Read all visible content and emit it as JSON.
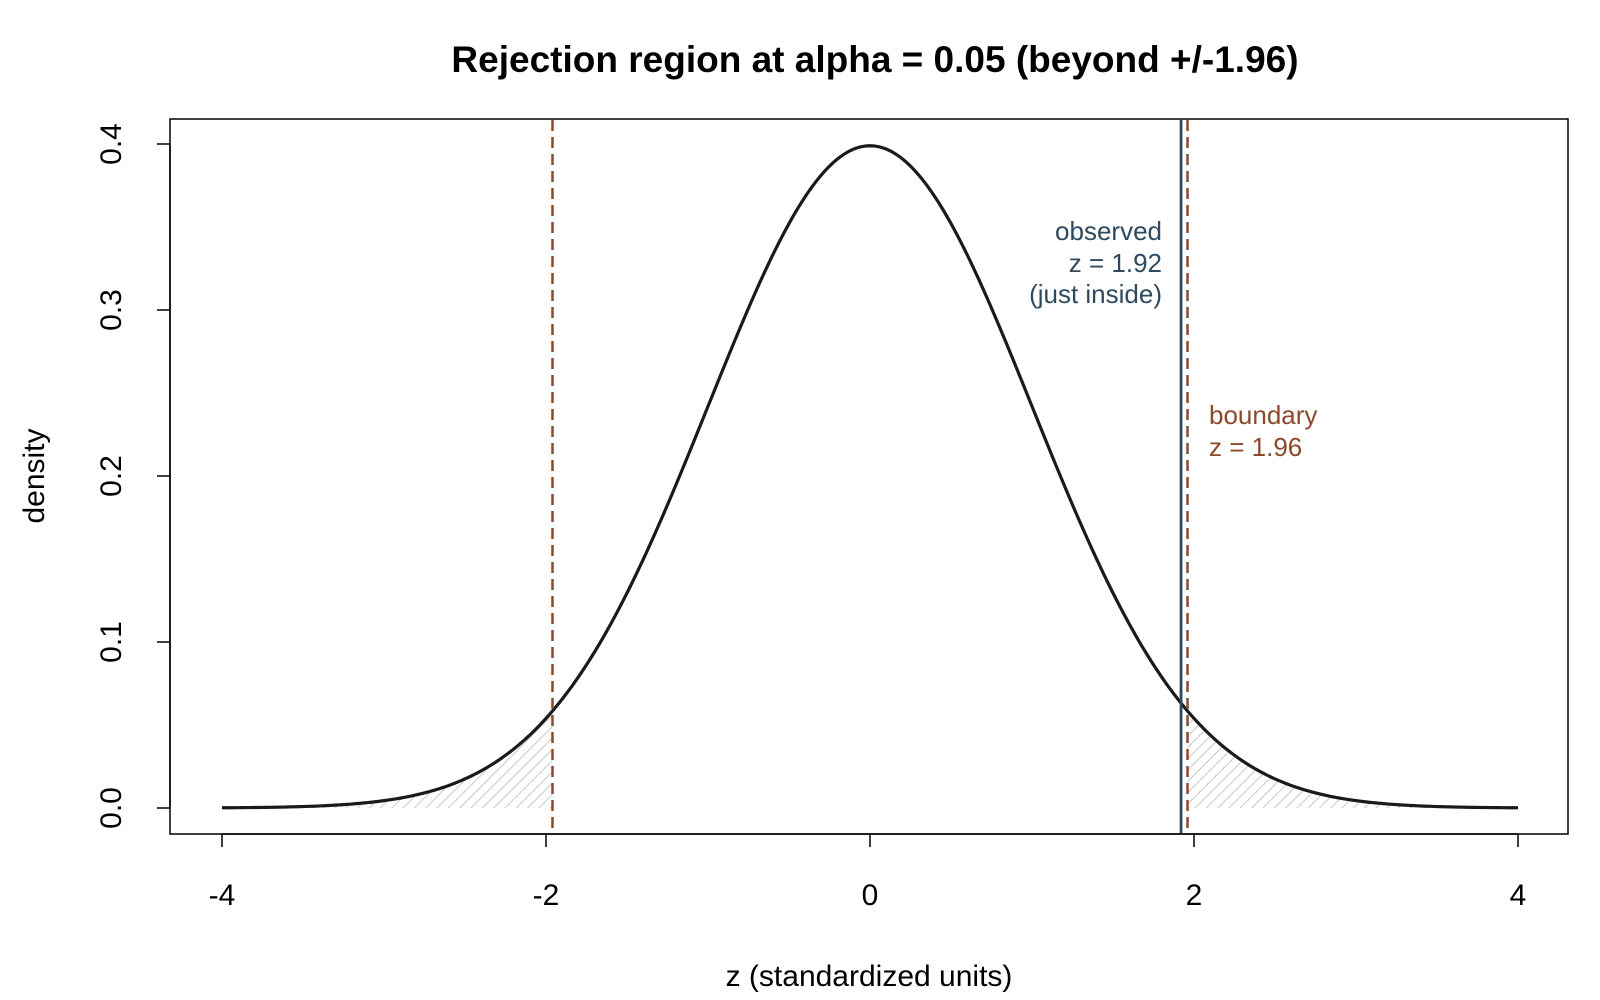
{
  "chart_data": {
    "type": "line",
    "title": "Rejection region at alpha = 0.05 (beyond +/-1.96)",
    "xlabel": "z (standardized units)",
    "ylabel": "density",
    "xlim": [
      -4,
      4
    ],
    "ylim": [
      0,
      0.4
    ],
    "x_ticks": [
      "-4",
      "-2",
      "0",
      "2",
      "4"
    ],
    "y_ticks": [
      "0.0",
      "0.1",
      "0.2",
      "0.3",
      "0.4"
    ],
    "series": [
      {
        "distribution": "standard normal",
        "x": [
          -4.0,
          -3.5,
          -3.0,
          -2.5,
          -2.0,
          -1.5,
          -1.0,
          -0.5,
          0.0,
          0.5,
          1.0,
          1.5,
          2.0,
          2.5,
          3.0,
          3.5,
          4.0
        ],
        "y": [
          0.0001,
          0.0009,
          0.0044,
          0.0175,
          0.054,
          0.1295,
          0.242,
          0.3521,
          0.3989,
          0.3521,
          0.242,
          0.1295,
          0.054,
          0.0175,
          0.0044,
          0.0009,
          0.0001
        ],
        "color": "#1a1a1a"
      }
    ],
    "shaded_regions": [
      {
        "from": -4,
        "to": -1.96,
        "pattern": "hatched"
      },
      {
        "from": 1.96,
        "to": 4,
        "pattern": "hatched"
      }
    ],
    "reference_lines": [
      {
        "x": -1.96,
        "style": "dashed",
        "color": "#8b4a2b"
      },
      {
        "x": 1.96,
        "style": "dashed",
        "color": "#8b4a2b"
      },
      {
        "x": 1.92,
        "style": "solid",
        "color": "#2e4a5e"
      }
    ],
    "annotations": {
      "observed": {
        "lines": [
          "observed",
          "z = 1.92",
          "(just inside)"
        ],
        "color": "#2e4a5e"
      },
      "boundary": {
        "lines": [
          "boundary",
          "z = 1.96"
        ],
        "color": "#8b4a2b"
      }
    },
    "grid": false,
    "legend": "none"
  }
}
